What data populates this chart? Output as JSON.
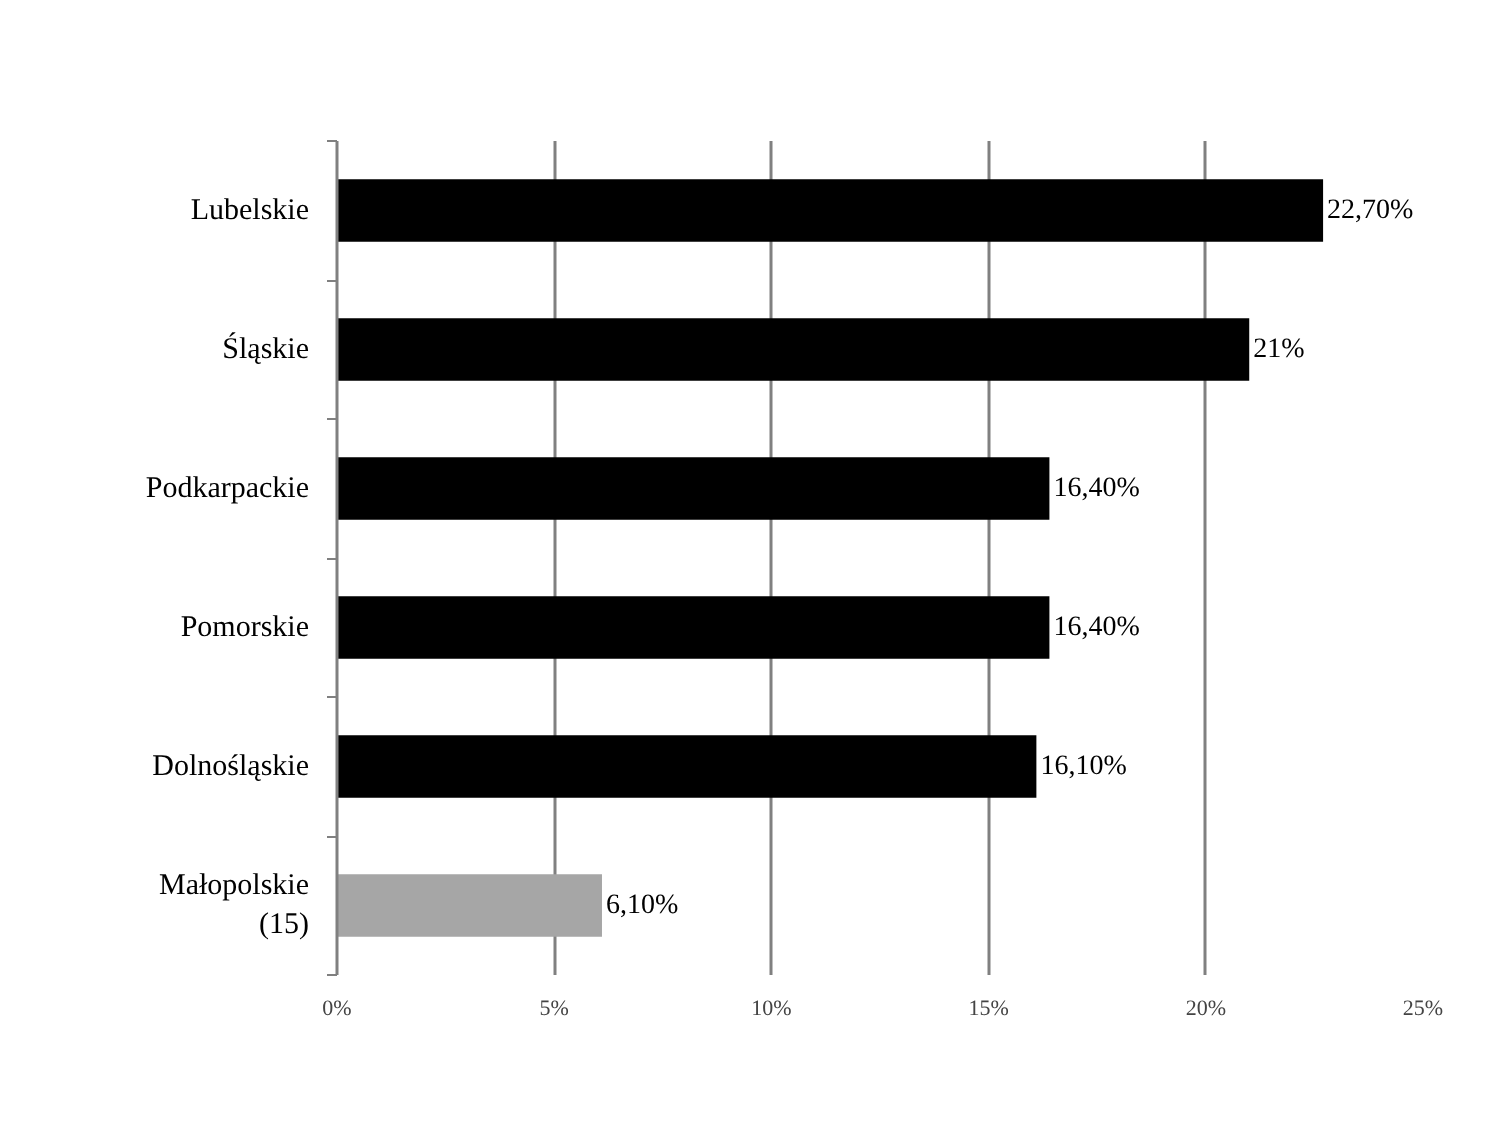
{
  "chart_data": {
    "type": "bar",
    "orientation": "horizontal",
    "categories": [
      "Lubelskie",
      "Śląskie",
      "Podkarpackie",
      "Pomorskie",
      "Dolnośląskie",
      "Małopolskie\n(15)"
    ],
    "values": [
      22.7,
      21,
      16.4,
      16.4,
      16.1,
      6.1
    ],
    "colors": [
      "#000000",
      "#000000",
      "#000000",
      "#000000",
      "#000000",
      "#a6a6a6"
    ],
    "value_labels": [
      "22,70%",
      "21%",
      "16,40%",
      "16,40%",
      "16,10%",
      "6,10%"
    ],
    "xlim": [
      0,
      25
    ],
    "xticks": [
      {
        "value": 0,
        "label": "0%"
      },
      {
        "value": 5,
        "label": "5%"
      },
      {
        "value": 10,
        "label": "10%"
      },
      {
        "value": 15,
        "label": "15%"
      },
      {
        "value": 20,
        "label": "20%"
      },
      {
        "value": 25,
        "label": "25%"
      }
    ],
    "grid": "x"
  }
}
